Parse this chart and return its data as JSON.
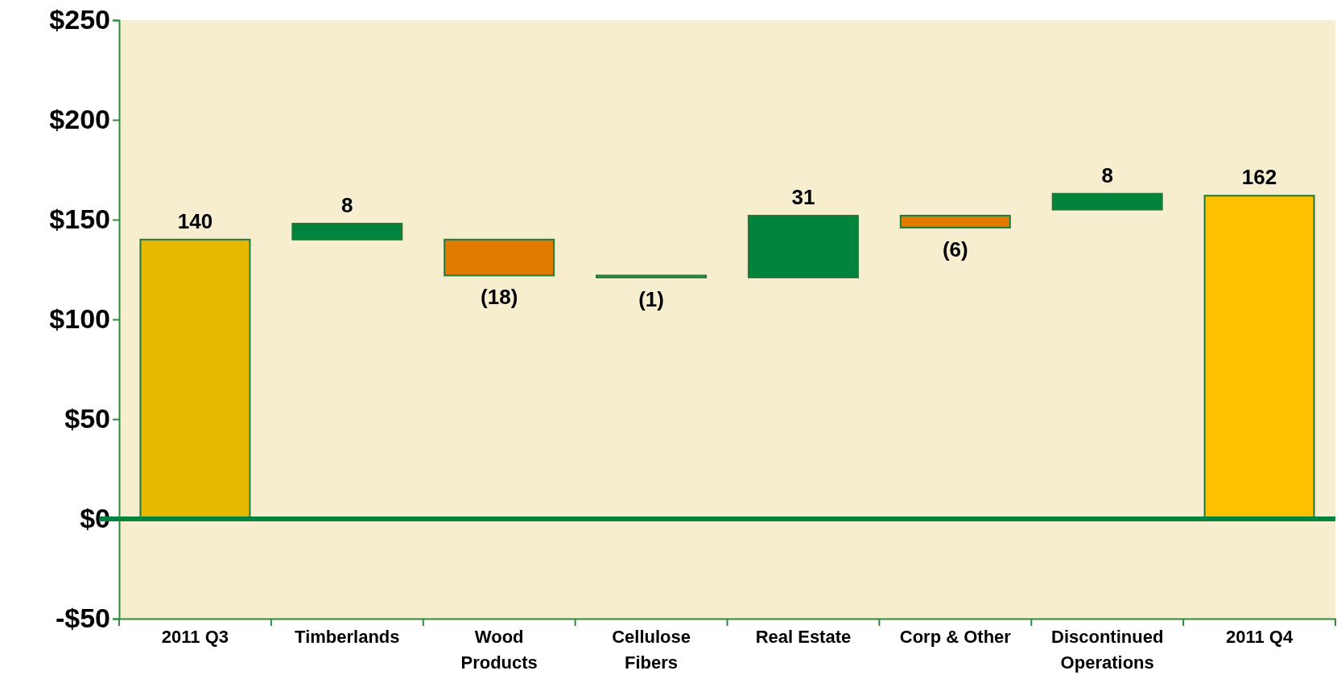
{
  "chart_data": {
    "type": "bar",
    "categories": [
      "2011 Q3",
      "Timberlands",
      "Wood Products",
      "Cellulose Fibers",
      "Real Estate",
      "Corp & Other",
      "Discontinued Operations",
      "2011 Q4"
    ],
    "values": [
      140,
      8,
      -18,
      -1,
      31,
      -6,
      8,
      162
    ],
    "base": [
      0,
      140,
      140,
      122,
      121,
      152,
      155,
      0
    ],
    "colors": [
      "#e8b800",
      "#00843d",
      "#e07b00",
      "#e07b00",
      "#00843d",
      "#e07b00",
      "#00843d",
      "#ffc000"
    ],
    "value_labels": [
      "140",
      "8",
      "(18)",
      "(1)",
      "31",
      "(6)",
      "8",
      "162"
    ],
    "ylim": [
      -50,
      250
    ],
    "yticks": [
      {
        "value": -50,
        "label": "-$50"
      },
      {
        "value": 0,
        "label": "$0"
      },
      {
        "value": 50,
        "label": "$50"
      },
      {
        "value": 100,
        "label": "$100"
      },
      {
        "value": 150,
        "label": "$150"
      },
      {
        "value": 200,
        "label": "$200"
      },
      {
        "value": 250,
        "label": "$250"
      }
    ],
    "ref_lines": [
      {
        "axis": "y",
        "value": 0,
        "color": "#00843d"
      }
    ],
    "grid": false
  }
}
